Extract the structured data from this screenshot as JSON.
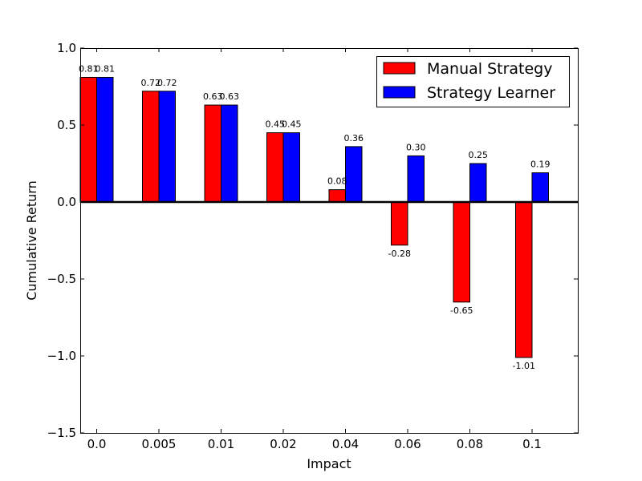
{
  "chart_data": {
    "type": "bar",
    "title": "",
    "xlabel": "Impact",
    "ylabel": "Cumulative Return",
    "categories": [
      "0.0",
      "0.005",
      "0.01",
      "0.02",
      "0.04",
      "0.06",
      "0.08",
      "0.1"
    ],
    "series": [
      {
        "name": "Manual Strategy",
        "color": "#ff0000",
        "values": [
          0.81,
          0.72,
          0.63,
          0.45,
          0.08,
          -0.28,
          -0.65,
          -1.01
        ],
        "labels": [
          "0.81",
          "0.72",
          "0.63",
          "0.45",
          "0.08",
          "-0.28",
          "-0.65",
          "-1.01"
        ]
      },
      {
        "name": "Strategy Learner",
        "color": "#0000ff",
        "values": [
          0.81,
          0.72,
          0.63,
          0.45,
          0.36,
          0.3,
          0.25,
          0.19
        ],
        "labels": [
          "0.81",
          "0.72",
          "0.63",
          "0.45",
          "0.36",
          "0.30",
          "0.25",
          "0.19"
        ]
      }
    ],
    "ylim": [
      -1.5,
      1.0
    ],
    "yticks": [
      1.0,
      0.5,
      0.0,
      -0.5,
      -1.0,
      -1.5
    ],
    "ytick_labels": [
      "1.0",
      "0.5",
      "0.0",
      "−0.5",
      "−1.0",
      "−1.5"
    ],
    "zero_line": true,
    "grid": false,
    "legend_position": "top-right"
  }
}
